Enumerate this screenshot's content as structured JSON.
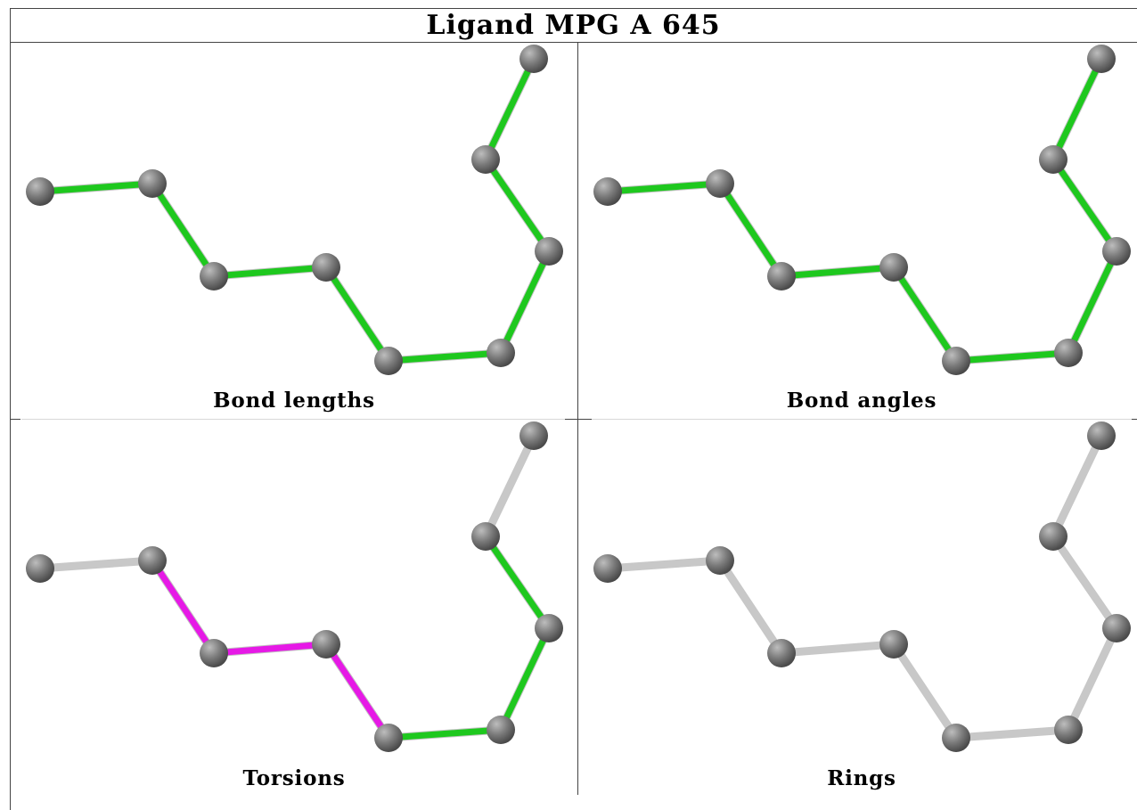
{
  "title": "Ligand MPG A 645",
  "colors": {
    "bond_good": "#1ec81e",
    "bond_torsion_outlier": "#e619e6",
    "bond_unassessed": "#c8c8c8",
    "atom": "#7a7a7a"
  },
  "panels": [
    {
      "caption": "Bond lengths",
      "bond_colors": [
        "green",
        "green",
        "green",
        "green",
        "green",
        "green",
        "green",
        "green"
      ]
    },
    {
      "caption": "Bond angles",
      "bond_colors": [
        "green",
        "green",
        "green",
        "green",
        "green",
        "green",
        "green",
        "green"
      ]
    },
    {
      "caption": "Torsions",
      "bond_colors": [
        "grey",
        "magenta",
        "magenta",
        "magenta",
        "green",
        "green",
        "green",
        "grey"
      ]
    },
    {
      "caption": "Rings",
      "bond_colors": [
        "grey",
        "grey",
        "grey",
        "grey",
        "grey",
        "grey",
        "grey",
        "grey"
      ]
    }
  ]
}
